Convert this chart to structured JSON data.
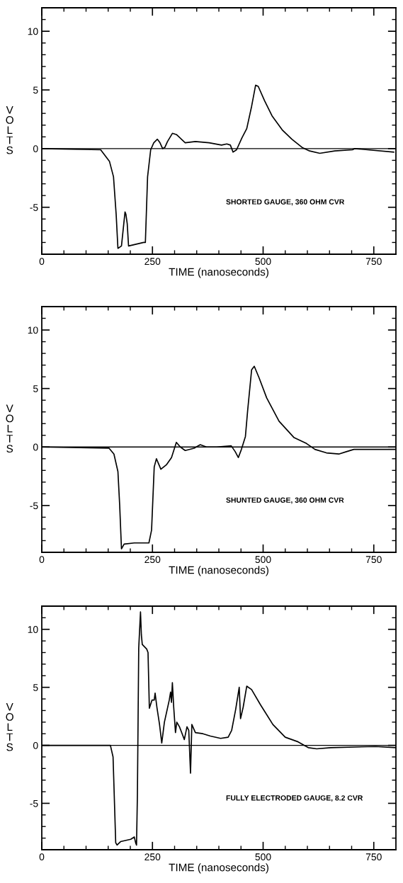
{
  "chart_data": [
    {
      "type": "line",
      "xlabel": "TIME (nanoseconds)",
      "ylabel": "VOLTS",
      "annotations": [
        "SHORTED GAUGE, 360 OHM CVR"
      ],
      "xlim": [
        0,
        800
      ],
      "ylim": [
        -9,
        12
      ],
      "xticks": [
        0,
        {
          "value": 50,
          "label": null
        },
        {
          "value": 100,
          "label": null
        },
        {
          "value": 150,
          "label": null
        },
        {
          "value": 200,
          "label": null
        },
        250,
        {
          "value": 300,
          "label": null
        },
        {
          "value": 350,
          "label": null
        },
        {
          "value": 400,
          "label": null
        },
        {
          "value": 450,
          "label": null
        },
        500,
        {
          "value": 550,
          "label": null
        },
        {
          "value": 600,
          "label": null
        },
        {
          "value": 650,
          "label": null
        },
        {
          "value": 700,
          "label": null
        },
        750
      ],
      "yticks": [
        {
          "value": -8,
          "label": null
        },
        {
          "value": -7,
          "label": null
        },
        {
          "value": -6,
          "label": null
        },
        -5,
        {
          "value": -4,
          "label": null
        },
        {
          "value": -3,
          "label": null
        },
        {
          "value": -2,
          "label": null
        },
        {
          "value": -1,
          "label": null
        },
        0,
        {
          "value": 1,
          "label": null
        },
        {
          "value": 2,
          "label": null
        },
        {
          "value": 3,
          "label": null
        },
        {
          "value": 4,
          "label": null
        },
        5,
        {
          "value": 6,
          "label": null
        },
        {
          "value": 7,
          "label": null
        },
        {
          "value": 8,
          "label": null
        },
        {
          "value": 9,
          "label": null
        },
        10,
        {
          "value": 11,
          "label": null
        }
      ],
      "ref_lines": [
        {
          "axis": "y",
          "value": 0,
          "color": "#000000"
        }
      ],
      "grid": false,
      "legend": false,
      "series": [
        {
          "color": "#000000",
          "x": [
            0,
            133,
            153,
            162,
            168,
            172,
            180,
            188,
            190,
            193,
            196,
            230,
            234,
            239,
            246,
            253,
            261,
            267,
            273,
            278,
            284,
            295,
            304,
            324,
            347,
            378,
            406,
            418,
            426,
            432,
            440,
            452,
            463,
            474,
            483,
            489,
            503,
            520,
            543,
            565,
            588,
            605,
            628,
            662,
            702,
            707,
            795
          ],
          "values": [
            0,
            -0.1,
            -1.1,
            -2.4,
            -5.6,
            -8.5,
            -8.3,
            -5.4,
            -5.6,
            -6.4,
            -8.3,
            -8.0,
            -8.0,
            -2.4,
            -0.1,
            0.5,
            0.8,
            0.5,
            0,
            0.1,
            0.6,
            1.3,
            1.2,
            0.5,
            0.6,
            0.5,
            0.3,
            0.4,
            0.3,
            -0.3,
            -0.1,
            0.9,
            1.7,
            3.6,
            5.4,
            5.3,
            4.1,
            2.8,
            1.6,
            0.8,
            0.1,
            -0.2,
            -0.4,
            -0.2,
            -0.1,
            0,
            -0.3
          ]
        }
      ]
    },
    {
      "type": "line",
      "xlabel": "TIME (nanoseconds)",
      "ylabel": "VOLTS",
      "annotations": [
        "SHUNTED GAUGE, 360 OHM CVR"
      ],
      "xlim": [
        0,
        800
      ],
      "ylim": [
        -9,
        12
      ],
      "xticks": [
        0,
        {
          "value": 50,
          "label": null
        },
        {
          "value": 100,
          "label": null
        },
        {
          "value": 150,
          "label": null
        },
        {
          "value": 200,
          "label": null
        },
        250,
        {
          "value": 300,
          "label": null
        },
        {
          "value": 350,
          "label": null
        },
        {
          "value": 400,
          "label": null
        },
        {
          "value": 450,
          "label": null
        },
        500,
        {
          "value": 550,
          "label": null
        },
        {
          "value": 600,
          "label": null
        },
        {
          "value": 650,
          "label": null
        },
        {
          "value": 700,
          "label": null
        },
        750
      ],
      "yticks": [
        {
          "value": -8,
          "label": null
        },
        {
          "value": -7,
          "label": null
        },
        {
          "value": -6,
          "label": null
        },
        -5,
        {
          "value": -4,
          "label": null
        },
        {
          "value": -3,
          "label": null
        },
        {
          "value": -2,
          "label": null
        },
        {
          "value": -1,
          "label": null
        },
        0,
        {
          "value": 1,
          "label": null
        },
        {
          "value": 2,
          "label": null
        },
        {
          "value": 3,
          "label": null
        },
        {
          "value": 4,
          "label": null
        },
        5,
        {
          "value": 6,
          "label": null
        },
        {
          "value": 7,
          "label": null
        },
        {
          "value": 8,
          "label": null
        },
        {
          "value": 9,
          "label": null
        },
        10,
        {
          "value": 11,
          "label": null
        }
      ],
      "ref_lines": [
        {
          "axis": "y",
          "value": 0,
          "color": "#000000"
        }
      ],
      "grid": false,
      "legend": false,
      "series": [
        {
          "color": "#000000",
          "x": [
            0,
            152,
            163,
            172,
            176,
            180,
            186,
            209,
            242,
            248,
            254,
            259,
            269,
            282,
            293,
            304,
            313,
            324,
            344,
            358,
            372,
            395,
            428,
            437,
            444,
            451,
            460,
            465,
            474,
            480,
            491,
            508,
            536,
            570,
            598,
            617,
            643,
            671,
            688,
            705,
            798
          ],
          "values": [
            0,
            -0.1,
            -0.6,
            -2.1,
            -5.0,
            -8.7,
            -8.3,
            -8.2,
            -8.2,
            -7.1,
            -1.7,
            -1.0,
            -1.9,
            -1.5,
            -0.9,
            0.4,
            0,
            -0.3,
            -0.1,
            0.2,
            0,
            0,
            0.1,
            -0.4,
            -0.9,
            -0.2,
            0.9,
            3.1,
            6.6,
            6.9,
            5.9,
            4.2,
            2.2,
            0.8,
            0.3,
            -0.2,
            -0.5,
            -0.6,
            -0.4,
            -0.2,
            -0.2
          ]
        }
      ]
    },
    {
      "type": "line",
      "xlabel": "TIME (nanoseconds)",
      "ylabel": "VOLTS",
      "annotations": [
        "FULLY ELECTRODED GAUGE, 8.2 CVR"
      ],
      "xlim": [
        0,
        800
      ],
      "ylim": [
        -9,
        12
      ],
      "xticks": [
        0,
        {
          "value": 50,
          "label": null
        },
        {
          "value": 100,
          "label": null
        },
        {
          "value": 150,
          "label": null
        },
        {
          "value": 200,
          "label": null
        },
        250,
        {
          "value": 300,
          "label": null
        },
        {
          "value": 350,
          "label": null
        },
        {
          "value": 400,
          "label": null
        },
        {
          "value": 450,
          "label": null
        },
        500,
        {
          "value": 550,
          "label": null
        },
        {
          "value": 600,
          "label": null
        },
        {
          "value": 650,
          "label": null
        },
        {
          "value": 700,
          "label": null
        },
        750
      ],
      "yticks": [
        {
          "value": -8,
          "label": null
        },
        {
          "value": -7,
          "label": null
        },
        {
          "value": -6,
          "label": null
        },
        -5,
        {
          "value": -4,
          "label": null
        },
        {
          "value": -3,
          "label": null
        },
        {
          "value": -2,
          "label": null
        },
        {
          "value": -1,
          "label": null
        },
        0,
        {
          "value": 1,
          "label": null
        },
        {
          "value": 2,
          "label": null
        },
        {
          "value": 3,
          "label": null
        },
        {
          "value": 4,
          "label": null
        },
        5,
        {
          "value": 6,
          "label": null
        },
        {
          "value": 7,
          "label": null
        },
        {
          "value": 8,
          "label": null
        },
        {
          "value": 9,
          "label": null
        },
        10,
        {
          "value": 11,
          "label": null
        }
      ],
      "ref_lines": [
        {
          "axis": "y",
          "value": 0,
          "color": "#000000"
        }
      ],
      "grid": false,
      "legend": false,
      "series": [
        {
          "color": "#000000",
          "x": [
            0,
            155,
            161,
            167,
            170,
            178,
            201,
            209,
            212,
            214,
            216,
            219,
            223,
            225,
            227,
            237,
            240,
            243,
            249,
            254,
            256,
            260,
            266,
            271,
            277,
            288,
            291,
            293,
            295,
            298,
            302,
            305,
            311,
            322,
            328,
            332,
            336,
            339,
            347,
            364,
            381,
            404,
            421,
            429,
            438,
            446,
            449,
            455,
            463,
            474,
            494,
            522,
            550,
            579,
            602,
            621,
            653,
            754,
            799
          ],
          "values": [
            0,
            0,
            -1.0,
            -8.4,
            -8.6,
            -8.3,
            -8.1,
            -7.9,
            -8.4,
            -8.6,
            -4.3,
            8.4,
            11.5,
            9.5,
            8.7,
            8.3,
            8.0,
            3.2,
            3.9,
            3.9,
            4.5,
            3.3,
            1.8,
            0.2,
            2.0,
            3.9,
            4.6,
            3.7,
            5.4,
            3.3,
            1.1,
            2.0,
            1.6,
            0.5,
            1.6,
            1.3,
            -2.4,
            1.8,
            1.1,
            1.0,
            0.8,
            0.6,
            0.7,
            1.3,
            3.1,
            5.0,
            2.3,
            3.3,
            5.1,
            4.8,
            3.5,
            1.8,
            0.7,
            0.3,
            -0.2,
            -0.3,
            -0.2,
            -0.1,
            -0.2
          ]
        }
      ]
    }
  ]
}
